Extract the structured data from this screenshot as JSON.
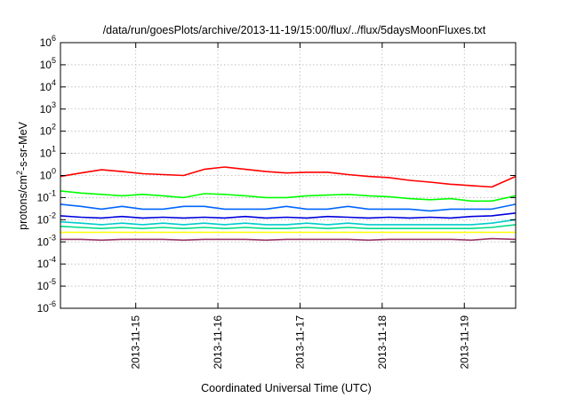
{
  "chart_data": {
    "type": "line",
    "title": "/data/run/goesPlots/archive/2013-11-19/15:00/flux/../flux/5daysMoonFluxes.txt",
    "xlabel": "Coordinated Universal Time (UTC)",
    "ylabel": {
      "main": "protons/cm",
      "superscript": "2",
      "rest": "-s-sr-MeV"
    },
    "yscale": "log",
    "ylim_exponents": [
      -6,
      6
    ],
    "y_ticks": [
      {
        "base": "10",
        "exp": "6",
        "value": 1000000.0
      },
      {
        "base": "10",
        "exp": "5",
        "value": 100000.0
      },
      {
        "base": "10",
        "exp": "4",
        "value": 10000.0
      },
      {
        "base": "10",
        "exp": "3",
        "value": 1000.0
      },
      {
        "base": "10",
        "exp": "2",
        "value": 100.0
      },
      {
        "base": "10",
        "exp": "1",
        "value": 10.0
      },
      {
        "base": "10",
        "exp": "0",
        "value": 1
      },
      {
        "base": "10",
        "exp": "-1",
        "value": 0.1
      },
      {
        "base": "10",
        "exp": "-2",
        "value": 0.01
      },
      {
        "base": "10",
        "exp": "-3",
        "value": 0.001
      },
      {
        "base": "10",
        "exp": "-4",
        "value": 0.0001
      },
      {
        "base": "10",
        "exp": "-5",
        "value": 1e-05
      },
      {
        "base": "10",
        "exp": "-6",
        "value": 1e-06
      }
    ],
    "xlim": [
      "2013-11-14 02:00",
      "2013-11-19 15:00"
    ],
    "x_ticks": [
      "2013-11-15",
      "2013-11-16",
      "2013-11-17",
      "2013-11-18",
      "2013-11-19"
    ],
    "grid": true,
    "x": [
      "2013-11-14 02:00",
      "2013-11-14 08:00",
      "2013-11-14 14:00",
      "2013-11-14 20:00",
      "2013-11-15 02:00",
      "2013-11-15 08:00",
      "2013-11-15 14:00",
      "2013-11-15 20:00",
      "2013-11-16 02:00",
      "2013-11-16 08:00",
      "2013-11-16 14:00",
      "2013-11-16 20:00",
      "2013-11-17 02:00",
      "2013-11-17 08:00",
      "2013-11-17 14:00",
      "2013-11-17 20:00",
      "2013-11-18 02:00",
      "2013-11-18 08:00",
      "2013-11-18 14:00",
      "2013-11-18 20:00",
      "2013-11-19 02:00",
      "2013-11-19 08:00",
      "2013-11-19 15:00"
    ],
    "series": [
      {
        "color": "#ff0000",
        "values": [
          0.9,
          1.3,
          1.8,
          1.5,
          1.2,
          1.1,
          1.0,
          1.9,
          2.4,
          1.9,
          1.5,
          1.3,
          1.4,
          1.4,
          1.1,
          0.9,
          0.8,
          0.6,
          0.5,
          0.4,
          0.35,
          0.3,
          0.9
        ]
      },
      {
        "color": "#00ff00",
        "values": [
          0.2,
          0.16,
          0.14,
          0.12,
          0.14,
          0.12,
          0.1,
          0.15,
          0.14,
          0.12,
          0.1,
          0.1,
          0.12,
          0.13,
          0.14,
          0.12,
          0.11,
          0.09,
          0.08,
          0.09,
          0.07,
          0.07,
          0.12
        ]
      },
      {
        "color": "#0066ff",
        "values": [
          0.05,
          0.04,
          0.03,
          0.04,
          0.03,
          0.03,
          0.04,
          0.04,
          0.03,
          0.03,
          0.03,
          0.04,
          0.03,
          0.03,
          0.04,
          0.03,
          0.03,
          0.03,
          0.025,
          0.03,
          0.03,
          0.03,
          0.05
        ]
      },
      {
        "color": "#0000dd",
        "values": [
          0.015,
          0.013,
          0.012,
          0.014,
          0.012,
          0.013,
          0.012,
          0.013,
          0.012,
          0.014,
          0.012,
          0.013,
          0.012,
          0.014,
          0.013,
          0.012,
          0.013,
          0.012,
          0.013,
          0.012,
          0.014,
          0.015,
          0.02
        ]
      },
      {
        "color": "#00cccc",
        "values": [
          0.008,
          0.007,
          0.006,
          0.007,
          0.006,
          0.007,
          0.006,
          0.007,
          0.006,
          0.007,
          0.006,
          0.006,
          0.007,
          0.006,
          0.007,
          0.006,
          0.006,
          0.006,
          0.006,
          0.006,
          0.006,
          0.007,
          0.01
        ]
      },
      {
        "color": "#00dd88",
        "values": [
          0.005,
          0.0045,
          0.004,
          0.0045,
          0.004,
          0.0045,
          0.004,
          0.0045,
          0.004,
          0.0045,
          0.004,
          0.004,
          0.0045,
          0.004,
          0.0045,
          0.004,
          0.004,
          0.004,
          0.004,
          0.004,
          0.004,
          0.0045,
          0.006
        ]
      },
      {
        "color": "#ffff00",
        "values": [
          0.0027,
          0.0027,
          0.0027,
          0.0027,
          0.0027,
          0.0027,
          0.0027,
          0.0027,
          0.0027,
          0.0027,
          0.0027,
          0.0027,
          0.0027,
          0.0027,
          0.0027,
          0.0027,
          0.0027,
          0.0027,
          0.0027,
          0.0027,
          0.0027,
          0.0027,
          0.0027
        ]
      },
      {
        "color": "#993366",
        "values": [
          0.0013,
          0.0013,
          0.0012,
          0.0013,
          0.0013,
          0.0013,
          0.0012,
          0.0013,
          0.0013,
          0.0013,
          0.0012,
          0.0013,
          0.0013,
          0.0013,
          0.0013,
          0.0012,
          0.0013,
          0.0013,
          0.0013,
          0.0013,
          0.0012,
          0.0014,
          0.0013
        ]
      }
    ]
  }
}
